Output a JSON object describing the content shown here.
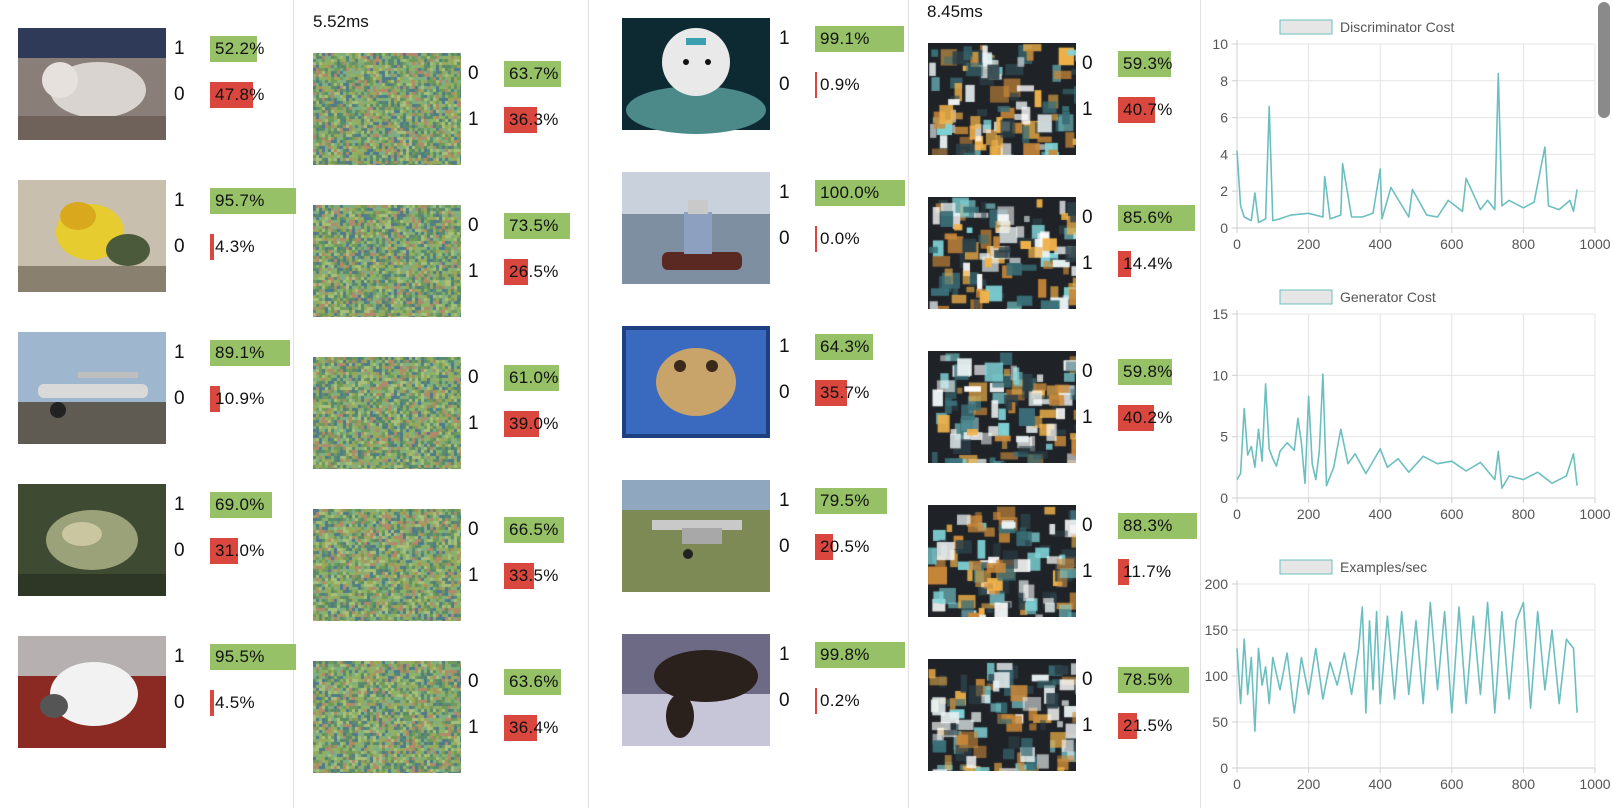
{
  "panels": [
    {
      "id": "real-left",
      "kind": "real",
      "rows": [
        {
          "scene": "dog",
          "predictions": [
            {
              "cls": "1",
              "pct": "52.2%",
              "value": 52.2,
              "color": "green"
            },
            {
              "cls": "0",
              "pct": "47.8%",
              "value": 47.8,
              "color": "red"
            }
          ]
        },
        {
          "scene": "bird",
          "predictions": [
            {
              "cls": "1",
              "pct": "95.7%",
              "value": 95.7,
              "color": "green"
            },
            {
              "cls": "0",
              "pct": "4.3%",
              "value": 4.3,
              "color": "red"
            }
          ]
        },
        {
          "scene": "plane",
          "predictions": [
            {
              "cls": "1",
              "pct": "89.1%",
              "value": 89.1,
              "color": "green"
            },
            {
              "cls": "0",
              "pct": "10.9%",
              "value": 10.9,
              "color": "red"
            }
          ]
        },
        {
          "scene": "frog",
          "predictions": [
            {
              "cls": "1",
              "pct": "69.0%",
              "value": 69.0,
              "color": "green"
            },
            {
              "cls": "0",
              "pct": "31.0%",
              "value": 31.0,
              "color": "red"
            }
          ]
        },
        {
          "scene": "cat",
          "predictions": [
            {
              "cls": "1",
              "pct": "95.5%",
              "value": 95.5,
              "color": "green"
            },
            {
              "cls": "0",
              "pct": "4.5%",
              "value": 4.5,
              "color": "red"
            }
          ]
        }
      ]
    },
    {
      "id": "gen-left",
      "kind": "generated",
      "time": "5.52ms",
      "rows": [
        {
          "scene": "noise",
          "predictions": [
            {
              "cls": "0",
              "pct": "63.7%",
              "value": 63.7,
              "color": "green"
            },
            {
              "cls": "1",
              "pct": "36.3%",
              "value": 36.3,
              "color": "red"
            }
          ]
        },
        {
          "scene": "noise",
          "predictions": [
            {
              "cls": "0",
              "pct": "73.5%",
              "value": 73.5,
              "color": "green"
            },
            {
              "cls": "1",
              "pct": "26.5%",
              "value": 26.5,
              "color": "red"
            }
          ]
        },
        {
          "scene": "noise",
          "predictions": [
            {
              "cls": "0",
              "pct": "61.0%",
              "value": 61.0,
              "color": "green"
            },
            {
              "cls": "1",
              "pct": "39.0%",
              "value": 39.0,
              "color": "red"
            }
          ]
        },
        {
          "scene": "noise",
          "predictions": [
            {
              "cls": "0",
              "pct": "66.5%",
              "value": 66.5,
              "color": "green"
            },
            {
              "cls": "1",
              "pct": "33.5%",
              "value": 33.5,
              "color": "red"
            }
          ]
        },
        {
          "scene": "noise",
          "predictions": [
            {
              "cls": "0",
              "pct": "63.6%",
              "value": 63.6,
              "color": "green"
            },
            {
              "cls": "1",
              "pct": "36.4%",
              "value": 36.4,
              "color": "red"
            }
          ]
        }
      ]
    },
    {
      "id": "real-right",
      "kind": "real",
      "rows": [
        {
          "scene": "dog2",
          "predictions": [
            {
              "cls": "1",
              "pct": "99.1%",
              "value": 99.1,
              "color": "green"
            },
            {
              "cls": "0",
              "pct": "0.9%",
              "value": 0.9,
              "color": "red"
            }
          ]
        },
        {
          "scene": "boat",
          "predictions": [
            {
              "cls": "1",
              "pct": "100.0%",
              "value": 100.0,
              "color": "green"
            },
            {
              "cls": "0",
              "pct": "0.0%",
              "value": 0.0,
              "color": "red"
            }
          ]
        },
        {
          "scene": "frog2",
          "predictions": [
            {
              "cls": "1",
              "pct": "64.3%",
              "value": 64.3,
              "color": "green"
            },
            {
              "cls": "0",
              "pct": "35.7%",
              "value": 35.7,
              "color": "red"
            }
          ]
        },
        {
          "scene": "plane2",
          "predictions": [
            {
              "cls": "1",
              "pct": "79.5%",
              "value": 79.5,
              "color": "green"
            },
            {
              "cls": "0",
              "pct": "20.5%",
              "value": 20.5,
              "color": "red"
            }
          ]
        },
        {
          "scene": "horse",
          "predictions": [
            {
              "cls": "1",
              "pct": "99.8%",
              "value": 99.8,
              "color": "green"
            },
            {
              "cls": "0",
              "pct": "0.2%",
              "value": 0.2,
              "color": "red"
            }
          ]
        }
      ]
    },
    {
      "id": "gen-right",
      "kind": "generated2",
      "time": "8.45ms",
      "rows": [
        {
          "scene": "blob",
          "predictions": [
            {
              "cls": "0",
              "pct": "59.3%",
              "value": 59.3,
              "color": "green"
            },
            {
              "cls": "1",
              "pct": "40.7%",
              "value": 40.7,
              "color": "red"
            }
          ]
        },
        {
          "scene": "blob",
          "predictions": [
            {
              "cls": "0",
              "pct": "85.6%",
              "value": 85.6,
              "color": "green"
            },
            {
              "cls": "1",
              "pct": "14.4%",
              "value": 14.4,
              "color": "red"
            }
          ]
        },
        {
          "scene": "blob",
          "predictions": [
            {
              "cls": "0",
              "pct": "59.8%",
              "value": 59.8,
              "color": "green"
            },
            {
              "cls": "1",
              "pct": "40.2%",
              "value": 40.2,
              "color": "red"
            }
          ]
        },
        {
          "scene": "blob",
          "predictions": [
            {
              "cls": "0",
              "pct": "88.3%",
              "value": 88.3,
              "color": "green"
            },
            {
              "cls": "1",
              "pct": "11.7%",
              "value": 11.7,
              "color": "red"
            }
          ]
        },
        {
          "scene": "blob",
          "predictions": [
            {
              "cls": "0",
              "pct": "78.5%",
              "value": 78.5,
              "color": "green"
            },
            {
              "cls": "1",
              "pct": "21.5%",
              "value": 21.5,
              "color": "red"
            }
          ]
        }
      ]
    }
  ],
  "colors": {
    "green": "#96c167",
    "red": "#d9473f",
    "line": "#6cbfc0",
    "legend_fill": "#e6e6e6"
  },
  "chart_data": [
    {
      "type": "line",
      "title": "",
      "legend": "Discriminator Cost",
      "legend_position": "top",
      "xlim": [
        0,
        1000
      ],
      "ylim": [
        0,
        10
      ],
      "xticks": [
        "0",
        "200",
        "400",
        "600",
        "800",
        "1000"
      ],
      "yticks": [
        "0",
        "2",
        "4",
        "6",
        "8",
        "10"
      ],
      "grid": true,
      "series": [
        {
          "name": "Discriminator Cost",
          "x": [
            0,
            10,
            20,
            40,
            50,
            60,
            80,
            90,
            100,
            120,
            150,
            200,
            240,
            245,
            260,
            290,
            295,
            320,
            350,
            380,
            400,
            405,
            430,
            480,
            490,
            530,
            560,
            590,
            630,
            640,
            680,
            700,
            720,
            730,
            740,
            760,
            800,
            830,
            860,
            870,
            900,
            930,
            940,
            950
          ],
          "y": [
            4.2,
            1.2,
            0.6,
            0.4,
            1.9,
            0.3,
            0.5,
            6.6,
            0.4,
            0.5,
            0.7,
            0.8,
            0.6,
            2.8,
            0.5,
            0.7,
            3.5,
            0.6,
            0.6,
            0.8,
            3.2,
            0.5,
            2.2,
            0.6,
            2.1,
            0.7,
            0.6,
            1.5,
            0.9,
            2.7,
            1.0,
            1.5,
            1.0,
            8.4,
            1.2,
            1.5,
            1.1,
            1.4,
            4.4,
            1.2,
            1.0,
            1.5,
            0.9,
            2.1
          ]
        }
      ]
    },
    {
      "type": "line",
      "title": "",
      "legend": "Generator Cost",
      "legend_position": "top",
      "xlim": [
        0,
        1000
      ],
      "ylim": [
        0,
        15
      ],
      "xticks": [
        "0",
        "200",
        "400",
        "600",
        "800",
        "1000"
      ],
      "yticks": [
        "0",
        "5",
        "10",
        "15"
      ],
      "grid": true,
      "series": [
        {
          "name": "Generator Cost",
          "x": [
            0,
            10,
            20,
            30,
            40,
            50,
            60,
            70,
            80,
            90,
            100,
            110,
            120,
            140,
            160,
            170,
            180,
            190,
            200,
            210,
            220,
            230,
            240,
            250,
            270,
            290,
            310,
            330,
            360,
            400,
            420,
            450,
            480,
            520,
            560,
            600,
            640,
            680,
            720,
            730,
            740,
            760,
            800,
            840,
            880,
            920,
            940,
            950
          ],
          "y": [
            1.5,
            2.0,
            7.3,
            3.5,
            4.2,
            2.5,
            5.6,
            3.0,
            9.3,
            4.0,
            3.2,
            2.6,
            3.8,
            4.5,
            3.9,
            6.5,
            4.5,
            1.2,
            8.3,
            2.8,
            1.5,
            3.8,
            10.1,
            1.0,
            2.5,
            5.6,
            2.8,
            3.6,
            2.0,
            4.0,
            2.5,
            3.2,
            2.1,
            3.4,
            2.8,
            3.0,
            2.2,
            2.9,
            1.5,
            3.8,
            0.8,
            1.8,
            1.5,
            2.1,
            1.2,
            1.8,
            3.6,
            1.0
          ]
        }
      ]
    },
    {
      "type": "line",
      "title": "",
      "legend": "Examples/sec",
      "legend_position": "top",
      "xlim": [
        0,
        1000
      ],
      "ylim": [
        0,
        200
      ],
      "xticks": [
        "0",
        "200",
        "400",
        "600",
        "800",
        "1000"
      ],
      "yticks": [
        "0",
        "50",
        "100",
        "150",
        "200"
      ],
      "grid": true,
      "series": [
        {
          "name": "Examples/sec",
          "x": [
            0,
            10,
            20,
            30,
            40,
            50,
            60,
            70,
            80,
            90,
            100,
            120,
            140,
            160,
            180,
            200,
            220,
            240,
            260,
            280,
            300,
            320,
            340,
            350,
            360,
            370,
            380,
            390,
            400,
            420,
            440,
            460,
            480,
            500,
            520,
            540,
            560,
            580,
            600,
            620,
            640,
            660,
            680,
            700,
            720,
            740,
            760,
            780,
            800,
            820,
            840,
            860,
            880,
            900,
            920,
            940,
            950
          ],
          "y": [
            130,
            70,
            140,
            80,
            120,
            40,
            130,
            90,
            110,
            70,
            120,
            85,
            125,
            60,
            120,
            80,
            130,
            75,
            115,
            90,
            125,
            80,
            130,
            175,
            60,
            160,
            85,
            170,
            70,
            165,
            75,
            170,
            80,
            160,
            70,
            180,
            85,
            170,
            60,
            175,
            70,
            165,
            80,
            180,
            60,
            170,
            75,
            160,
            180,
            65,
            170,
            85,
            150,
            70,
            140,
            130,
            60
          ]
        }
      ]
    }
  ]
}
